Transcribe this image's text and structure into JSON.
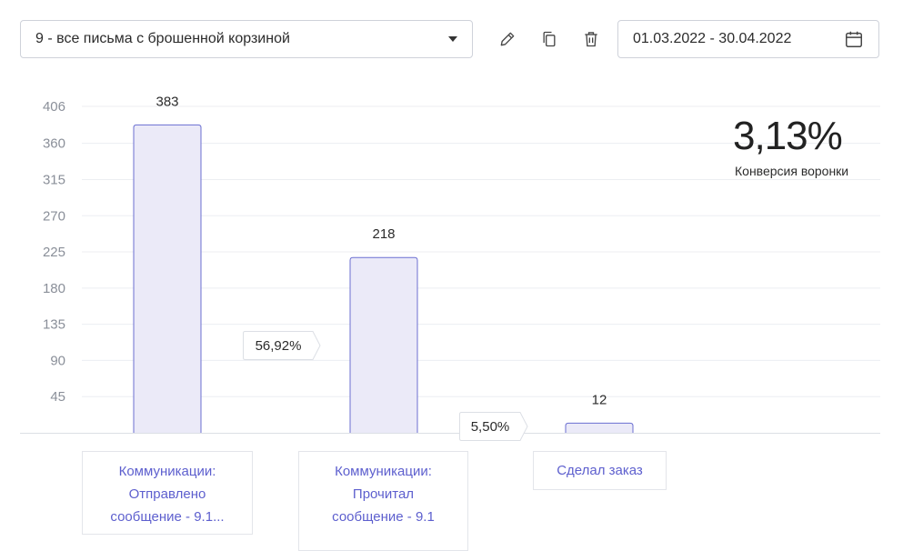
{
  "toolbar": {
    "report_select": "9 - все письма с брошенной корзиной",
    "date_range": "01.03.2022 - 30.04.2022",
    "icons": [
      "pencil-icon",
      "copy-icon",
      "trash-icon",
      "calendar-icon"
    ]
  },
  "kpi": {
    "value": "3,13%",
    "label": "Конверсия воронки"
  },
  "chart_data": {
    "type": "bar",
    "categories": [
      "Коммуникации: Отправлено сообщение - 9.1...",
      "Коммуникации: Прочитал сообщение - 9.1",
      "Сделал заказ"
    ],
    "category_lines": [
      [
        "Коммуникации:",
        "Отправлено",
        "сообщение - 9.1..."
      ],
      [
        "Коммуникации:",
        "Прочитал",
        "сообщение - 9.1"
      ],
      [
        "Сделал заказ"
      ]
    ],
    "values": [
      383,
      218,
      12
    ],
    "value_labels": [
      "383",
      "218",
      "12"
    ],
    "step_conversions": [
      "56,92%",
      "5,50%"
    ],
    "yticks": [
      45,
      90,
      135,
      180,
      225,
      270,
      315,
      360,
      406
    ],
    "ylim": [
      0,
      406
    ],
    "grid": true,
    "colors": {
      "bar_fill": "#ebeaf8",
      "bar_stroke": "#6b6fd1",
      "grid": "#eceef2",
      "link": "#5d5fce"
    }
  }
}
